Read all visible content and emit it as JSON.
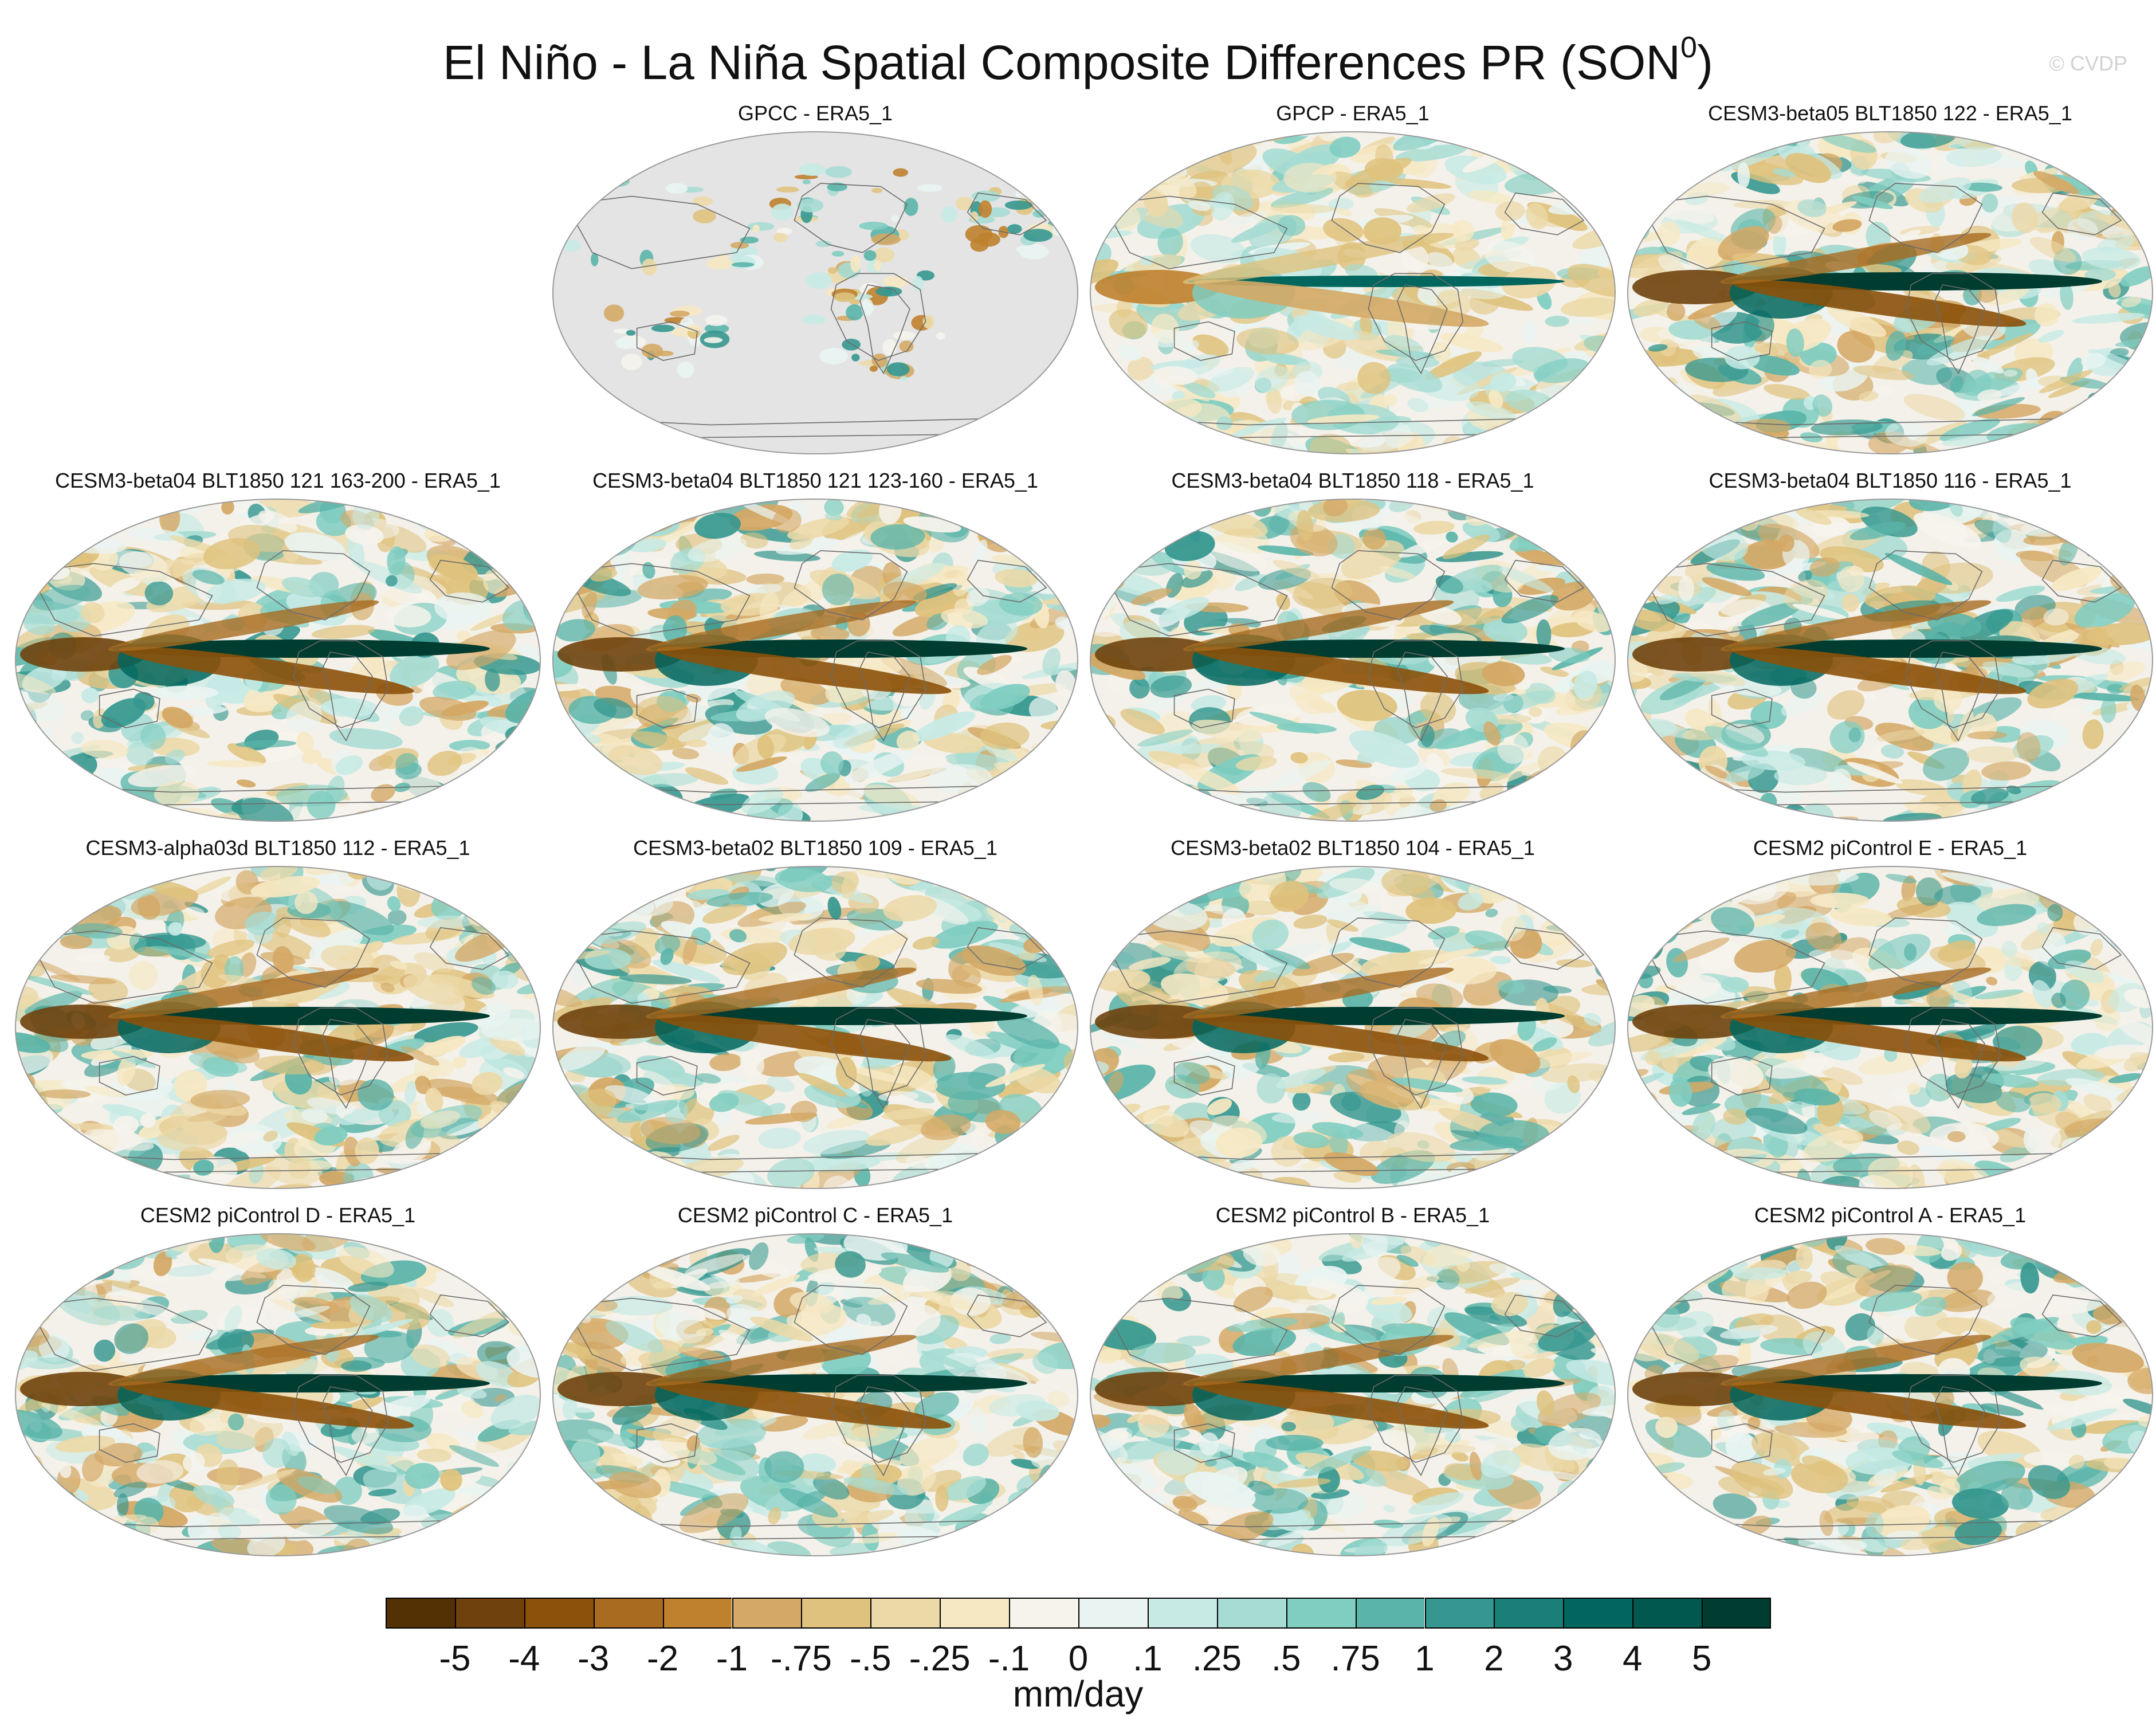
{
  "figure": {
    "title_main": "El Niño - La Niña Spatial Composite Differences PR (SON",
    "title_superscript": "0",
    "title_close": ")",
    "watermark": "© CVDP"
  },
  "panels": [
    {
      "title": "GPCC - ERA5_1",
      "kind": "land_only",
      "seed": 11,
      "row": 0,
      "col": 1
    },
    {
      "title": "GPCP - ERA5_1",
      "kind": "obs",
      "seed": 23,
      "row": 0,
      "col": 2
    },
    {
      "title": "CESM3-beta05 BLT1850 122 - ERA5_1",
      "kind": "model",
      "seed": 37,
      "row": 0,
      "col": 3
    },
    {
      "title": "CESM3-beta04 BLT1850 121 163-200 - ERA5_1",
      "kind": "model",
      "seed": 41,
      "row": 1,
      "col": 0
    },
    {
      "title": "CESM3-beta04 BLT1850 121 123-160 - ERA5_1",
      "kind": "model",
      "seed": 53,
      "row": 1,
      "col": 1
    },
    {
      "title": "CESM3-beta04 BLT1850 118 - ERA5_1",
      "kind": "model",
      "seed": 67,
      "row": 1,
      "col": 2
    },
    {
      "title": "CESM3-beta04 BLT1850 116 - ERA5_1",
      "kind": "model",
      "seed": 79,
      "row": 1,
      "col": 3
    },
    {
      "title": "CESM3-alpha03d BLT1850 112 - ERA5_1",
      "kind": "model",
      "seed": 83,
      "row": 2,
      "col": 0
    },
    {
      "title": "CESM3-beta02 BLT1850 109 - ERA5_1",
      "kind": "model",
      "seed": 97,
      "row": 2,
      "col": 1
    },
    {
      "title": "CESM3-beta02 BLT1850 104 - ERA5_1",
      "kind": "model",
      "seed": 101,
      "row": 2,
      "col": 2
    },
    {
      "title": "CESM2 piControl E - ERA5_1",
      "kind": "model",
      "seed": 113,
      "row": 2,
      "col": 3
    },
    {
      "title": "CESM2 piControl D - ERA5_1",
      "kind": "model",
      "seed": 127,
      "row": 3,
      "col": 0
    },
    {
      "title": "CESM2 piControl C - ERA5_1",
      "kind": "model",
      "seed": 131,
      "row": 3,
      "col": 1
    },
    {
      "title": "CESM2 piControl B - ERA5_1",
      "kind": "model",
      "seed": 149,
      "row": 3,
      "col": 2
    },
    {
      "title": "CESM2 piControl A - ERA5_1",
      "kind": "model",
      "seed": 157,
      "row": 3,
      "col": 3
    }
  ],
  "colorbar": {
    "units": "mm/day",
    "labels": [
      "-5",
      "-4",
      "-3",
      "-2",
      "-1",
      "-.75",
      "-.5",
      "-.25",
      "-.1",
      "0",
      ".1",
      ".25",
      ".5",
      ".75",
      "1",
      "2",
      "3",
      "4",
      "5"
    ],
    "colors": [
      "#543005",
      "#6f420d",
      "#8c510a",
      "#a86b20",
      "#bf812d",
      "#d4a865",
      "#dfc27d",
      "#ecd9a8",
      "#f6e8c3",
      "#f5f3ec",
      "#e9f4f2",
      "#c7eae5",
      "#a6dcd3",
      "#80cdc1",
      "#5ab4a9",
      "#35978f",
      "#1a7f77",
      "#01665e",
      "#00584f",
      "#003c30"
    ],
    "missing_color": "#e4e4e4"
  }
}
